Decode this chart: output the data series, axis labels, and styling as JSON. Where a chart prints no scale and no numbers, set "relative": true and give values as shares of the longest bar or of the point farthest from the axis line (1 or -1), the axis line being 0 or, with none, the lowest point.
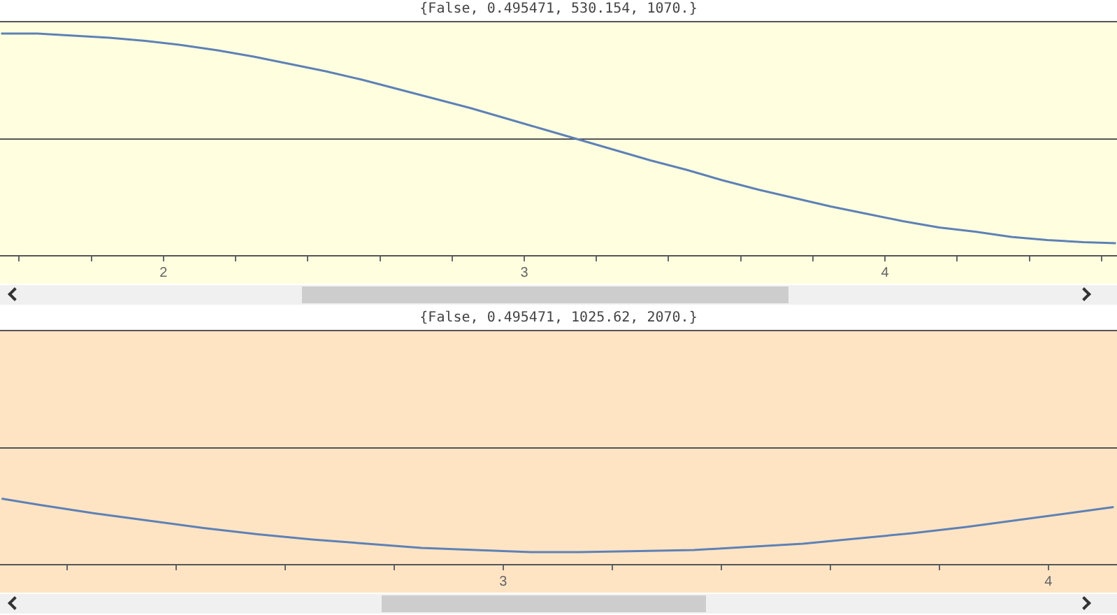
{
  "chart_data": [
    {
      "type": "line",
      "title": "{False, 0.495471, 530.154, 1070.}",
      "relative": true,
      "x": [
        1.55,
        1.65,
        1.75,
        1.85,
        1.95,
        2.05,
        2.15,
        2.25,
        2.35,
        2.45,
        2.55,
        2.65,
        2.75,
        2.85,
        2.95,
        3.05,
        3.15,
        3.25,
        3.35,
        3.45,
        3.55,
        3.65,
        3.75,
        3.85,
        3.95,
        4.05,
        4.15,
        4.25,
        4.35,
        4.45,
        4.55,
        4.64
      ],
      "xlim": [
        1.547,
        4.643
      ],
      "xticks": [
        {
          "value": 1.6,
          "label": null
        },
        {
          "value": 1.8,
          "label": null
        },
        2,
        {
          "value": 2.2,
          "label": null
        },
        {
          "value": 2.4,
          "label": null
        },
        {
          "value": 2.6,
          "label": null
        },
        {
          "value": 2.8,
          "label": null
        },
        3,
        {
          "value": 3.2,
          "label": null
        },
        {
          "value": 3.4,
          "label": null
        },
        {
          "value": 3.6,
          "label": null
        },
        {
          "value": 3.8,
          "label": null
        },
        4,
        {
          "value": 4.2,
          "label": null
        },
        {
          "value": 4.4,
          "label": null
        },
        {
          "value": 4.6,
          "label": null
        }
      ],
      "series": [
        {
          "color": "#5e81b5",
          "values": [
            1.0,
            1.0,
            0.98,
            0.96,
            0.93,
            0.89,
            0.84,
            0.78,
            0.71,
            0.64,
            0.56,
            0.47,
            0.38,
            0.29,
            0.19,
            0.09,
            -0.01,
            -0.11,
            -0.21,
            -0.3,
            -0.4,
            -0.49,
            -0.57,
            -0.65,
            -0.72,
            -0.79,
            -0.85,
            -0.89,
            -0.94,
            -0.97,
            -0.99,
            -1.0
          ]
        }
      ]
    },
    {
      "type": "line",
      "title": "{False, 0.495471, 1025.62, 2070.}",
      "relative": true,
      "x": [
        2.08,
        2.15,
        2.25,
        2.35,
        2.45,
        2.55,
        2.65,
        2.75,
        2.85,
        2.95,
        3.05,
        3.14,
        3.25,
        3.35,
        3.45,
        3.55,
        3.65,
        3.75,
        3.85,
        3.95,
        4.05,
        4.12
      ],
      "xlim": [
        2.077,
        4.126
      ],
      "xticks": [
        {
          "value": 2.2,
          "label": null
        },
        {
          "value": 2.4,
          "label": null
        },
        {
          "value": 2.6,
          "label": null
        },
        {
          "value": 2.8,
          "label": null
        },
        3,
        {
          "value": 3.2,
          "label": null
        },
        {
          "value": 3.4,
          "label": null
        },
        {
          "value": 3.6,
          "label": null
        },
        {
          "value": 3.8,
          "label": null
        },
        4
      ],
      "series": [
        {
          "color": "#5e81b5",
          "values": [
            -0.49,
            -0.55,
            -0.63,
            -0.7,
            -0.77,
            -0.83,
            -0.88,
            -0.92,
            -0.96,
            -0.98,
            -1.0,
            -1.0,
            -0.99,
            -0.98,
            -0.95,
            -0.92,
            -0.87,
            -0.82,
            -0.76,
            -0.69,
            -0.62,
            -0.57
          ]
        }
      ]
    }
  ]
}
